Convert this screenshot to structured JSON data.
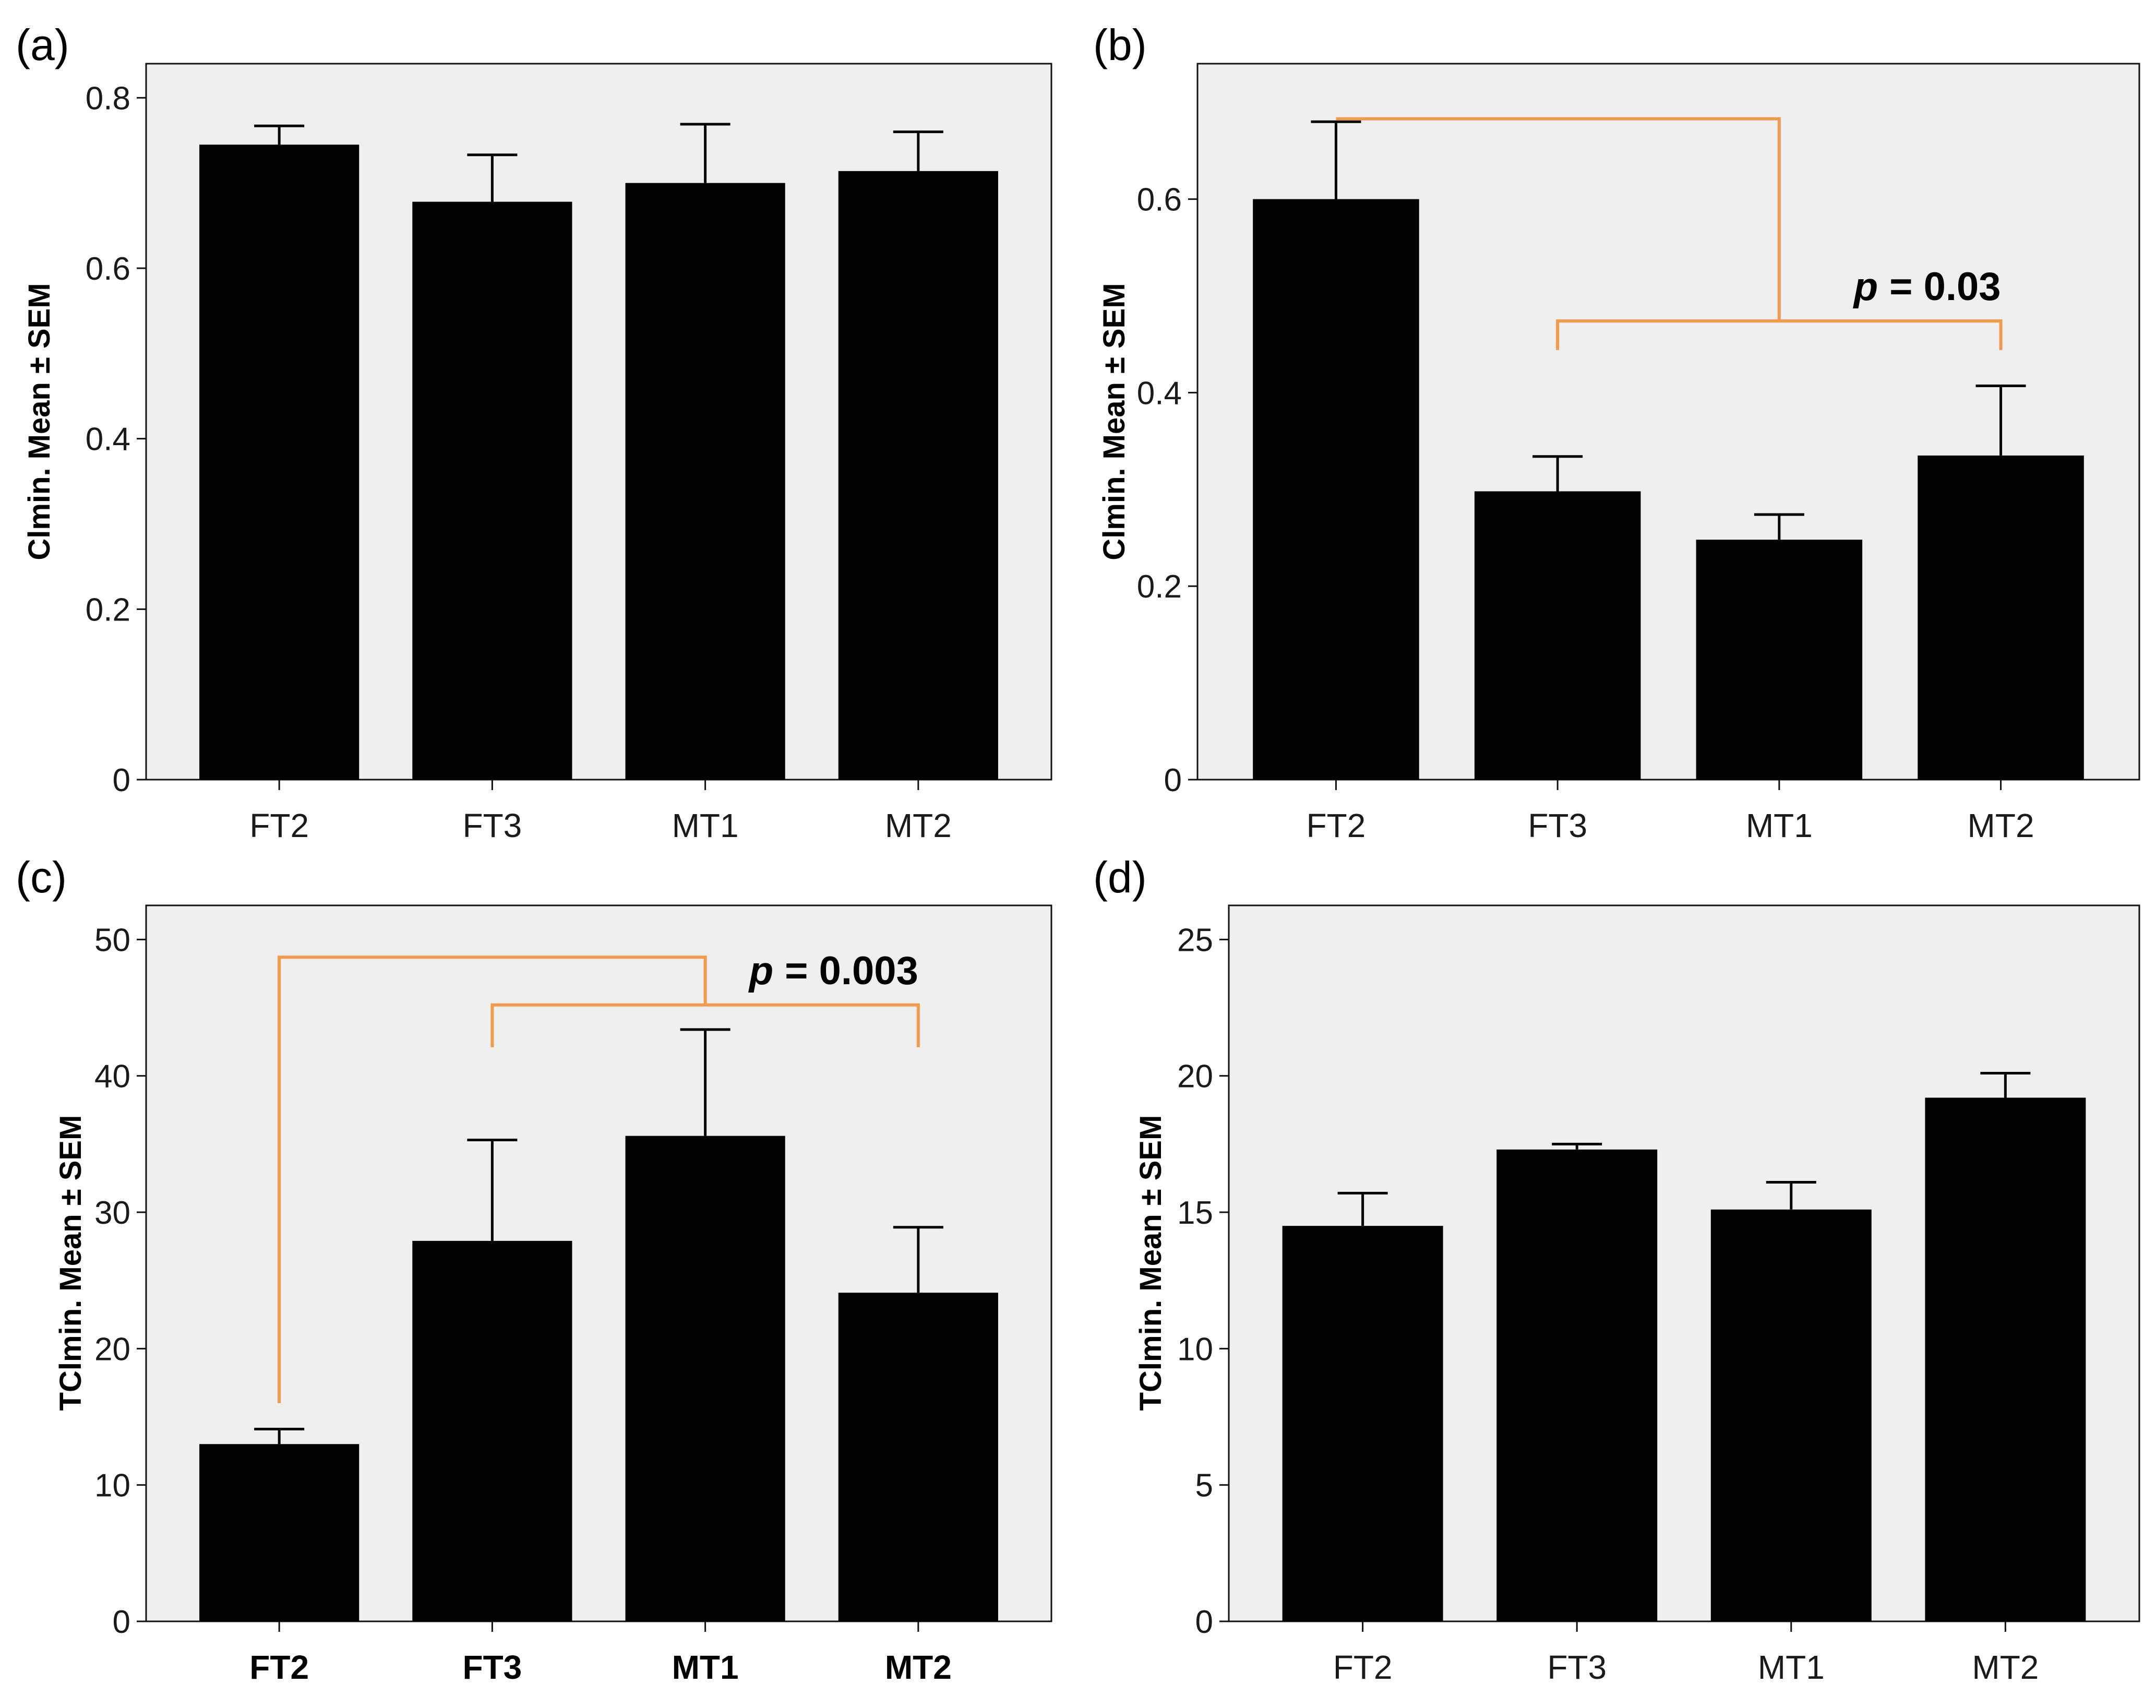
{
  "chart_data": [
    {
      "panel": "(a)",
      "type": "bar",
      "categories": [
        "FT2",
        "FT3",
        "MT1",
        "MT2"
      ],
      "values": [
        0.745,
        0.678,
        0.7,
        0.714
      ],
      "errors": [
        0.022,
        0.055,
        0.069,
        0.046
      ],
      "ylabel": "Clmin. Mean ± SEM",
      "ylim": [
        0,
        0.84
      ],
      "yticks": [
        0,
        0.2,
        0.4,
        0.6,
        0.8
      ],
      "ytick_labels": [
        "0",
        "0.2",
        "0.4",
        "0.6",
        "0.8"
      ],
      "bold_categories": false,
      "significance": null
    },
    {
      "panel": "(b)",
      "type": "bar",
      "categories": [
        "FT2",
        "FT3",
        "MT1",
        "MT2"
      ],
      "values": [
        0.6,
        0.298,
        0.248,
        0.335
      ],
      "errors": [
        0.08,
        0.036,
        0.026,
        0.072
      ],
      "ylabel": "Clmin. Mean ± SEM",
      "ylim": [
        0,
        0.74
      ],
      "yticks": [
        0,
        0.2,
        0.4,
        0.6
      ],
      "ytick_labels": [
        "0",
        "0.2",
        "0.4",
        "0.6"
      ],
      "bold_categories": false,
      "significance": {
        "text": "p = 0.03",
        "p_label": "p",
        "p_value": "= 0.03",
        "from": 0,
        "group": [
          1,
          3
        ],
        "top_y": 0.683,
        "group_y": 0.474,
        "group_tip_y": 0.444,
        "color": "#f39a4a"
      }
    },
    {
      "panel": "(c)",
      "type": "bar",
      "categories": [
        "FT2",
        "FT3",
        "MT1",
        "MT2"
      ],
      "values": [
        13.0,
        27.9,
        35.6,
        24.1
      ],
      "errors": [
        1.1,
        7.4,
        7.8,
        4.8
      ],
      "ylabel": "TClmin. Mean ± SEM",
      "ylim": [
        0,
        52.5
      ],
      "yticks": [
        0,
        10,
        20,
        30,
        40,
        50
      ],
      "ytick_labels": [
        "0",
        "10",
        "20",
        "30",
        "40",
        "50"
      ],
      "bold_categories": true,
      "significance": {
        "text": "p = 0.003",
        "p_label": "p",
        "p_value": "= 0.003",
        "from": 0,
        "group": [
          1,
          3
        ],
        "top_y": 48.7,
        "group_y": 45.2,
        "group_tip_y": 42.1,
        "from_tip_y": 16.0,
        "color": "#f39a4a"
      }
    },
    {
      "panel": "(d)",
      "type": "bar",
      "categories": [
        "FT2",
        "FT3",
        "MT1",
        "MT2"
      ],
      "values": [
        14.5,
        17.3,
        15.1,
        19.2
      ],
      "errors": [
        1.2,
        0.2,
        1.0,
        0.9
      ],
      "ylabel": "TClmin. Mean ± SEM",
      "ylim": [
        0,
        26.25
      ],
      "yticks": [
        0,
        5,
        10,
        15,
        20,
        25
      ],
      "ytick_labels": [
        "0",
        "5",
        "10",
        "15",
        "20",
        "25"
      ],
      "bold_categories": false,
      "significance": null
    }
  ]
}
